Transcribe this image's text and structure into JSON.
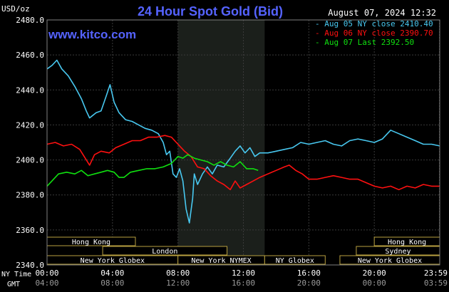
{
  "header": {
    "units": "USD/oz",
    "title": "24 Hour Spot Gold (Bid)",
    "date": "August 07, 2024 12:32",
    "watermark": "www.kitco.com"
  },
  "legend": [
    {
      "text": "Aug 05 NY close 2410.40",
      "color": "#48c8f0"
    },
    {
      "text": "Aug 06 NY close 2390.70",
      "color": "#ff1010"
    },
    {
      "text": "Aug 07 Last 2392.50",
      "color": "#10e010"
    }
  ],
  "axis": {
    "ny_time_label": "NY Time",
    "gmt_label": "GMT",
    "x_ticks": [
      {
        "h": 0,
        "ny": "00:00",
        "gmt": "04:00"
      },
      {
        "h": 4,
        "ny": "04:00",
        "gmt": "08:00"
      },
      {
        "h": 8,
        "ny": "08:00",
        "gmt": "12:00"
      },
      {
        "h": 12,
        "ny": "12:00",
        "gmt": "16:00"
      },
      {
        "h": 16,
        "ny": "16:00",
        "gmt": "20:00"
      },
      {
        "h": 20,
        "ny": "20:00",
        "gmt": "00:00"
      },
      {
        "h": 23.983,
        "ny": "23:59",
        "gmt": "03:59"
      }
    ],
    "y_ticks": [
      "2340.0",
      "2360.0",
      "2380.0",
      "2400.0",
      "2420.0",
      "2440.0",
      "2460.0",
      "2480.0"
    ]
  },
  "sessions": [
    {
      "label": "Hong Kong",
      "start": 0,
      "end": 5.4,
      "row": 0
    },
    {
      "label": "London",
      "start": 3.4,
      "end": 11.0,
      "row": 1
    },
    {
      "label": "New York Globex",
      "start": 0,
      "end": 8.0,
      "row": 2
    },
    {
      "label": "New York NYMEX",
      "start": 8.0,
      "end": 13.3,
      "row": 2
    },
    {
      "label": "NY Globex",
      "start": 13.3,
      "end": 17.0,
      "row": 2
    },
    {
      "label": "New York Globex",
      "start": 17.9,
      "end": 24.0,
      "row": 2
    },
    {
      "label": "Hong Kong",
      "start": 20.0,
      "end": 24.0,
      "row": 0
    },
    {
      "label": "Sydney",
      "start": 18.9,
      "end": 24.0,
      "row": 1
    }
  ],
  "chart_data": {
    "type": "line",
    "title": "24 Hour Spot Gold (Bid)",
    "ylabel": "USD/oz",
    "x_unit": "NY Time (hours)",
    "xlim": [
      0,
      24
    ],
    "ylim": [
      2340,
      2480
    ],
    "grid": true,
    "legend_position": "top-right",
    "highlight_band": [
      8.0,
      13.3
    ],
    "series": [
      {
        "name": "Aug 05 NY close 2410.40",
        "color": "#48c8f0",
        "points": [
          [
            0,
            2452
          ],
          [
            0.3,
            2454
          ],
          [
            0.6,
            2457
          ],
          [
            0.9,
            2452
          ],
          [
            1.3,
            2448
          ],
          [
            1.7,
            2442
          ],
          [
            2.1,
            2435
          ],
          [
            2.4,
            2428
          ],
          [
            2.6,
            2424
          ],
          [
            3.0,
            2427
          ],
          [
            3.3,
            2428
          ],
          [
            3.6,
            2436
          ],
          [
            3.85,
            2443
          ],
          [
            4.1,
            2433
          ],
          [
            4.4,
            2427
          ],
          [
            4.8,
            2423
          ],
          [
            5.2,
            2422
          ],
          [
            5.6,
            2420
          ],
          [
            6.0,
            2418
          ],
          [
            6.4,
            2417
          ],
          [
            6.8,
            2415
          ],
          [
            7.1,
            2410
          ],
          [
            7.3,
            2403
          ],
          [
            7.5,
            2405
          ],
          [
            7.7,
            2392
          ],
          [
            7.9,
            2390
          ],
          [
            8.1,
            2395
          ],
          [
            8.3,
            2388
          ],
          [
            8.5,
            2372
          ],
          [
            8.7,
            2364
          ],
          [
            8.9,
            2378
          ],
          [
            9.0,
            2392
          ],
          [
            9.2,
            2386
          ],
          [
            9.5,
            2392
          ],
          [
            9.8,
            2396
          ],
          [
            10.1,
            2392
          ],
          [
            10.4,
            2397
          ],
          [
            10.8,
            2396
          ],
          [
            11.2,
            2401
          ],
          [
            11.5,
            2405
          ],
          [
            11.8,
            2408
          ],
          [
            12.1,
            2404
          ],
          [
            12.4,
            2407
          ],
          [
            12.7,
            2402
          ],
          [
            13.0,
            2404
          ],
          [
            13.5,
            2404
          ],
          [
            14.0,
            2405
          ],
          [
            14.5,
            2406
          ],
          [
            15.0,
            2407
          ],
          [
            15.5,
            2410
          ],
          [
            16.0,
            2409
          ],
          [
            16.5,
            2410
          ],
          [
            17.0,
            2411
          ],
          [
            17.5,
            2409
          ],
          [
            18.0,
            2408
          ],
          [
            18.5,
            2411
          ],
          [
            19.0,
            2412
          ],
          [
            19.5,
            2411
          ],
          [
            20.0,
            2410
          ],
          [
            20.5,
            2412
          ],
          [
            21.0,
            2417
          ],
          [
            21.5,
            2415
          ],
          [
            22.0,
            2413
          ],
          [
            22.5,
            2411
          ],
          [
            23.0,
            2409
          ],
          [
            23.5,
            2409
          ],
          [
            24.0,
            2408
          ]
        ]
      },
      {
        "name": "Aug 06 NY close 2390.70",
        "color": "#ff1010",
        "points": [
          [
            0,
            2409
          ],
          [
            0.5,
            2410
          ],
          [
            1.0,
            2408
          ],
          [
            1.5,
            2409
          ],
          [
            2.0,
            2406
          ],
          [
            2.4,
            2400
          ],
          [
            2.6,
            2397
          ],
          [
            2.9,
            2403
          ],
          [
            3.3,
            2405
          ],
          [
            3.8,
            2404
          ],
          [
            4.2,
            2407
          ],
          [
            4.7,
            2409
          ],
          [
            5.2,
            2411
          ],
          [
            5.7,
            2411
          ],
          [
            6.2,
            2413
          ],
          [
            6.7,
            2413
          ],
          [
            7.2,
            2414
          ],
          [
            7.6,
            2413
          ],
          [
            8.0,
            2409
          ],
          [
            8.4,
            2405
          ],
          [
            8.8,
            2402
          ],
          [
            9.2,
            2396
          ],
          [
            9.6,
            2395
          ],
          [
            10.0,
            2391
          ],
          [
            10.4,
            2388
          ],
          [
            10.8,
            2386
          ],
          [
            11.2,
            2383
          ],
          [
            11.5,
            2388
          ],
          [
            11.8,
            2384
          ],
          [
            12.2,
            2386
          ],
          [
            12.6,
            2388
          ],
          [
            13.0,
            2390
          ],
          [
            13.5,
            2392
          ],
          [
            14.0,
            2394
          ],
          [
            14.5,
            2396
          ],
          [
            14.8,
            2397
          ],
          [
            15.2,
            2394
          ],
          [
            15.6,
            2392
          ],
          [
            16.0,
            2389
          ],
          [
            16.5,
            2389
          ],
          [
            17.0,
            2390
          ],
          [
            17.5,
            2391
          ],
          [
            18.0,
            2390
          ],
          [
            18.5,
            2389
          ],
          [
            19.0,
            2389
          ],
          [
            19.5,
            2387
          ],
          [
            20.0,
            2385
          ],
          [
            20.5,
            2384
          ],
          [
            21.0,
            2385
          ],
          [
            21.5,
            2383
          ],
          [
            22.0,
            2385
          ],
          [
            22.5,
            2384
          ],
          [
            23.0,
            2386
          ],
          [
            23.5,
            2385
          ],
          [
            24.0,
            2385
          ]
        ]
      },
      {
        "name": "Aug 07 Last 2392.50",
        "color": "#10e010",
        "points": [
          [
            0,
            2385
          ],
          [
            0.3,
            2388
          ],
          [
            0.7,
            2392
          ],
          [
            1.2,
            2393
          ],
          [
            1.7,
            2392
          ],
          [
            2.1,
            2394
          ],
          [
            2.5,
            2391
          ],
          [
            2.9,
            2392
          ],
          [
            3.3,
            2393
          ],
          [
            3.7,
            2394
          ],
          [
            4.1,
            2393
          ],
          [
            4.4,
            2390
          ],
          [
            4.7,
            2390
          ],
          [
            5.1,
            2393
          ],
          [
            5.6,
            2394
          ],
          [
            6.1,
            2395
          ],
          [
            6.6,
            2395
          ],
          [
            7.1,
            2396
          ],
          [
            7.6,
            2398
          ],
          [
            8.0,
            2402
          ],
          [
            8.3,
            2401
          ],
          [
            8.6,
            2403
          ],
          [
            9.0,
            2401
          ],
          [
            9.4,
            2400
          ],
          [
            9.8,
            2399
          ],
          [
            10.2,
            2397
          ],
          [
            10.6,
            2399
          ],
          [
            11.0,
            2397
          ],
          [
            11.4,
            2396
          ],
          [
            11.8,
            2399
          ],
          [
            12.2,
            2395
          ],
          [
            12.6,
            2395
          ],
          [
            12.9,
            2394
          ]
        ]
      }
    ]
  }
}
